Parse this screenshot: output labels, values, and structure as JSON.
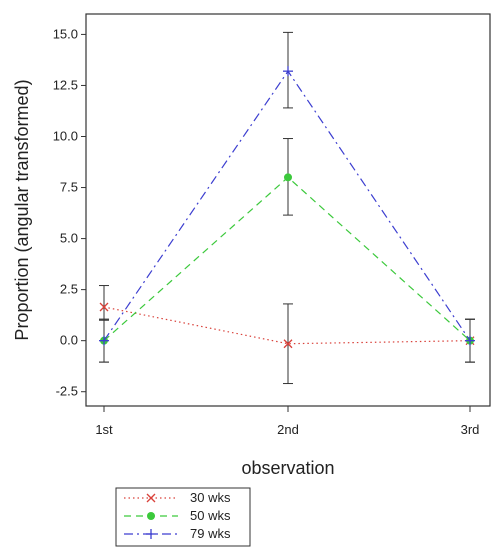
{
  "chart_data": {
    "type": "line",
    "title": "",
    "xlabel": "observation",
    "ylabel": "Proportion (angular transformed)",
    "categories": [
      "1st",
      "2nd",
      "3rd"
    ],
    "ylim": [
      -3.2,
      16.0
    ],
    "yticks": [
      -2.5,
      0.0,
      2.5,
      5.0,
      7.5,
      10.0,
      12.5,
      15.0
    ],
    "ytick_labels": [
      "-2.5",
      "0.0",
      "2.5",
      "5.0",
      "7.5",
      "10.0",
      "12.5",
      "15.0"
    ],
    "grid": false,
    "legend_position": "bottom-left, below the plot",
    "series": [
      {
        "name": "30 wks",
        "values": [
          1.65,
          -0.15,
          0.0
        ],
        "errors_lower": [
          1.0,
          -2.1,
          -1.05
        ],
        "errors_upper": [
          2.7,
          1.8,
          1.05
        ],
        "color": "#d9413a",
        "line_style": "dotted",
        "marker": "x"
      },
      {
        "name": "50 wks",
        "values": [
          0.0,
          8.0,
          0.0
        ],
        "errors_lower": [
          -1.05,
          6.15,
          -1.05
        ],
        "errors_upper": [
          1.05,
          9.9,
          1.05
        ],
        "color": "#3cc93c",
        "line_style": "dashed",
        "marker": "filled-circle"
      },
      {
        "name": "79 wks",
        "values": [
          0.0,
          13.2,
          0.0
        ],
        "errors_lower": [
          -1.05,
          11.4,
          -1.05
        ],
        "errors_upper": [
          1.05,
          15.1,
          1.05
        ],
        "color": "#3d3fd0",
        "line_style": "dash-dot",
        "marker": "plus"
      }
    ],
    "error_bar_color": "#333333"
  }
}
